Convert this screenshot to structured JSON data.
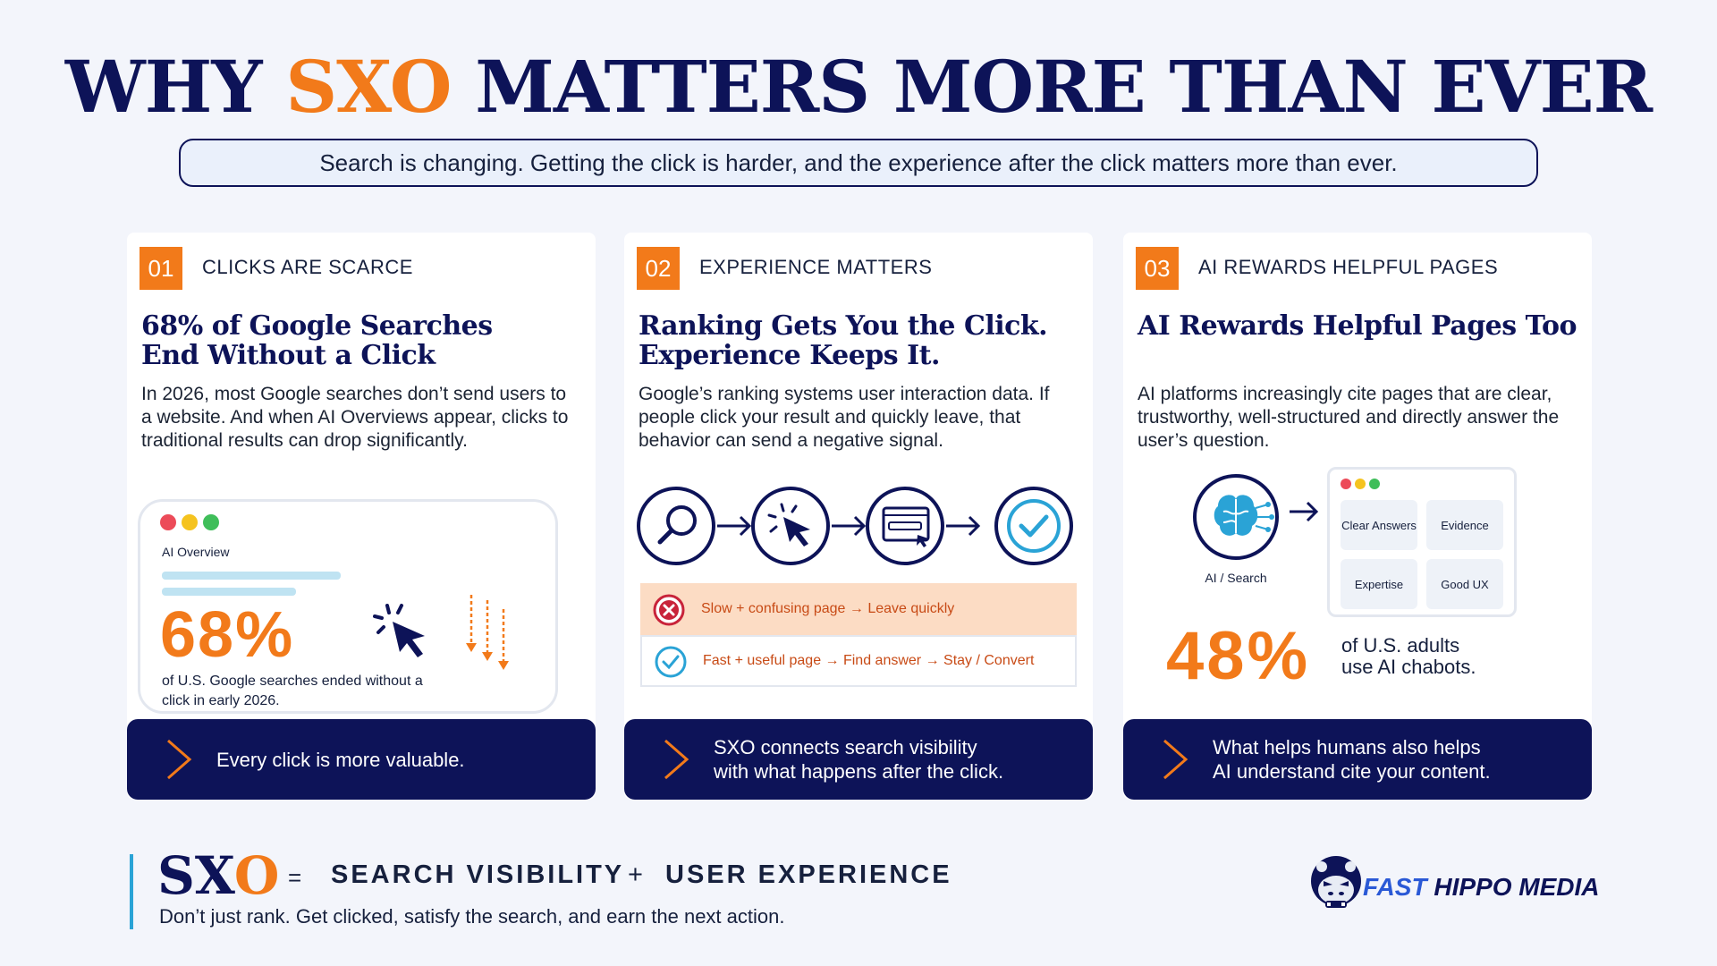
{
  "header": {
    "title_part1": "WHY ",
    "title_accent": "SXO",
    "title_part2": " MATTERS MORE THAN EVER",
    "subtitle": "Search is changing. Getting the click is harder, and the experience after the click matters more than ever."
  },
  "cards": [
    {
      "number": "01",
      "kicker": "CLICKS ARE SCARCE",
      "headline_line1": "68% of Google Searches",
      "headline_line2": "End Without a Click",
      "body": "In 2026, most Google searches don’t send users to a website. And when AI Overviews appear, clicks to traditional results can drop significantly.",
      "mock_label": "AI Overview",
      "stat": "68%",
      "stat_caption": "of U.S. Google searches ended without a click in early 2026.",
      "banner": "Every click is more valuable."
    },
    {
      "number": "02",
      "kicker": "EXPERIENCE MATTERS",
      "headline_line1": "Ranking Gets You the Click.",
      "headline_line2": "Experience Keeps It.",
      "body": "Google’s ranking systems user interaction data. If people click your result and quickly leave, that behavior can send a negative signal.",
      "flow_icons": [
        "search-icon",
        "cursor-click-icon",
        "browser-window-icon",
        "check-circle-icon"
      ],
      "negative": "Slow + confusing page → Leave quickly",
      "positive": "Fast + useful page → Find answer → Stay / Convert",
      "banner_line1": "SXO connects search visibility",
      "banner_line2": "with what happens after the click."
    },
    {
      "number": "03",
      "kicker": "AI REWARDS HELPFUL PAGES",
      "headline_line1": "AI Rewards Helpful Pages Too",
      "body": "AI platforms increasingly cite pages that are clear, trustworthy, well-structured and directly answer the user’s question.",
      "brain_label": "AI / Search",
      "tiles": [
        "Clear Answers",
        "Evidence",
        "Expertise",
        "Good UX"
      ],
      "stat": "48%",
      "stat_caption_line1": "of U.S. adults",
      "stat_caption_line2": "use AI chabots.",
      "banner_line1": "What helps humans also helps",
      "banner_line2": "AI understand cite your content."
    }
  ],
  "footer": {
    "sxo_s": "SX",
    "sxo_o": "O",
    "equals": "=",
    "term1": "SEARCH VISIBILITY",
    "plus": "+",
    "term2": "USER EXPERIENCE",
    "tagline": "Don’t just rank. Get clicked, satisfy the search, and earn the next action.",
    "brand_fast": "FAST",
    "brand_rest": " HIPPO MEDIA"
  },
  "colors": {
    "navy": "#0d1358",
    "orange": "#f27a1a",
    "teal": "#2aa3d6",
    "background": "#f3f5fb"
  }
}
